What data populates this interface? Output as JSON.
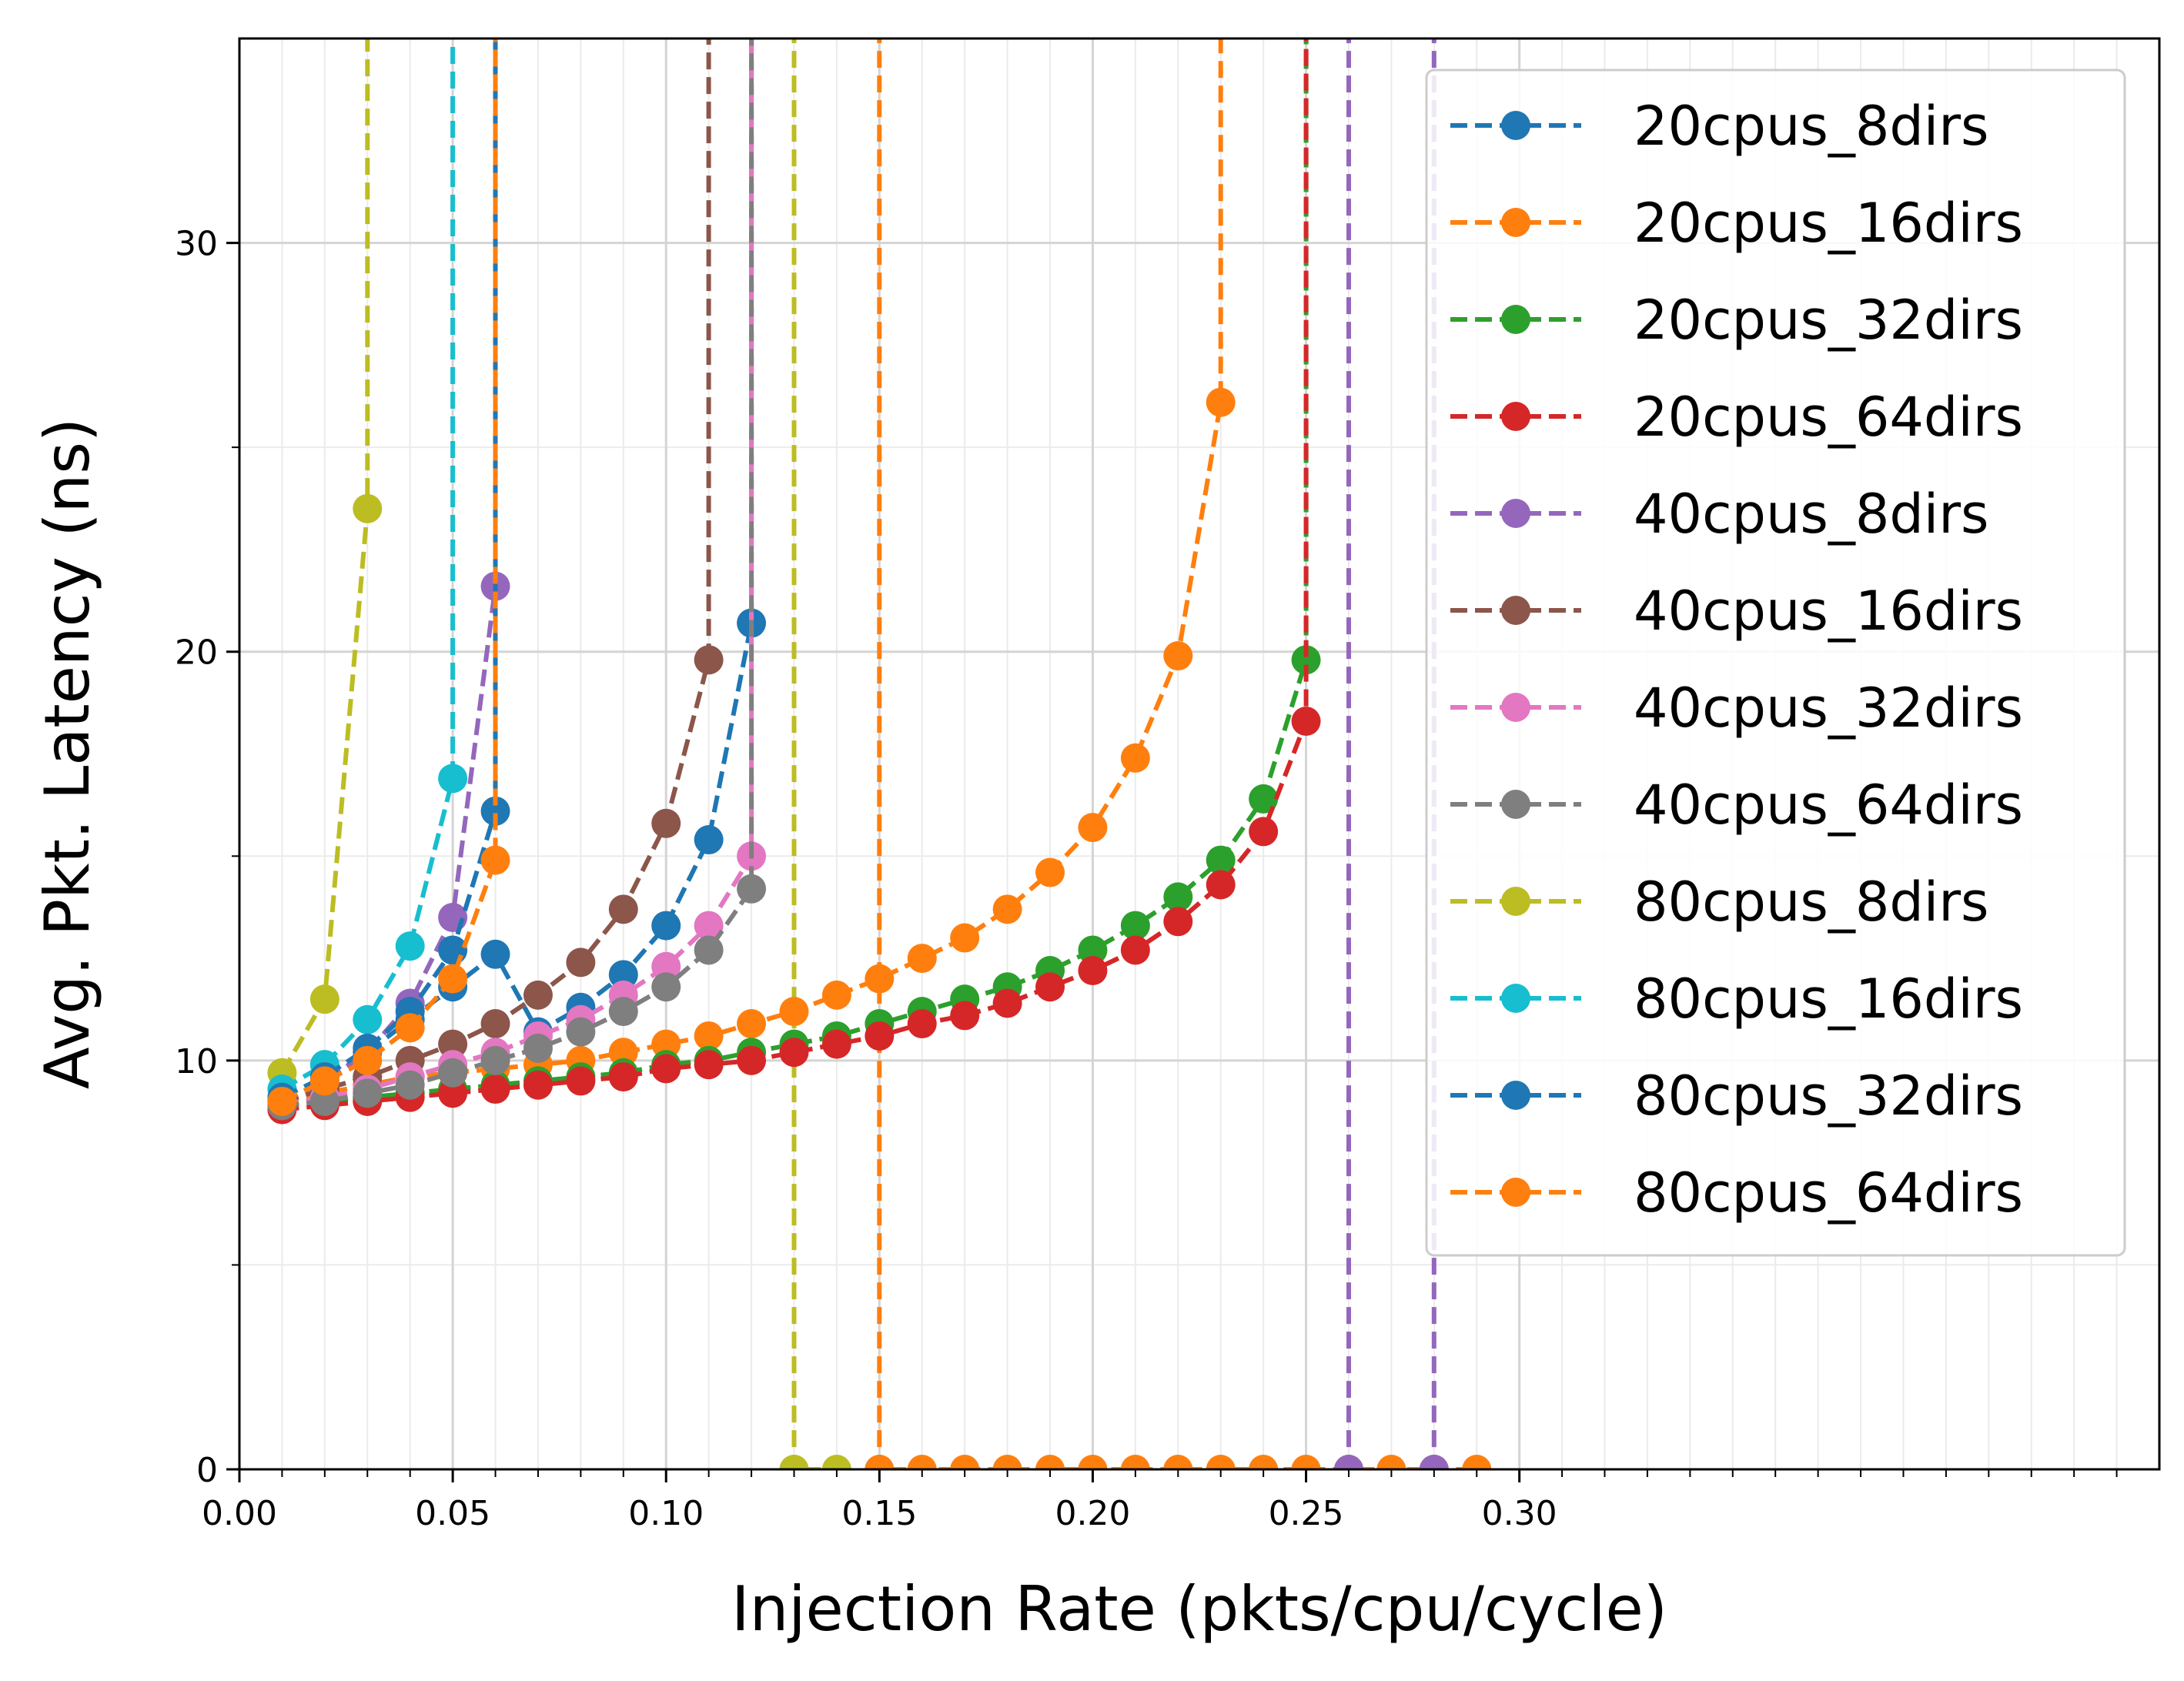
{
  "chart_data": {
    "type": "line",
    "xlabel": "Injection Rate  (pkts/cpu/cycle)",
    "ylabel": "Avg. Pkt. Latency (ns)",
    "xlim": [
      0.0,
      0.45
    ],
    "ylim": [
      0,
      35
    ],
    "x_ticks": [
      0.0,
      0.05,
      0.1,
      0.15,
      0.2,
      0.25,
      0.3
    ],
    "x_tick_labels": [
      "0.00",
      "0.05",
      "0.10",
      "0.15",
      "0.20",
      "0.25",
      "0.30"
    ],
    "y_ticks": [
      0,
      10,
      20,
      30
    ],
    "y_tick_labels": [
      "0",
      "10",
      "20",
      "30"
    ],
    "x_minor_step": 0.01,
    "y_minor_step": 5,
    "grid": true,
    "legend_position": "top-right",
    "line_style": "dashed",
    "marker": "circle",
    "series": [
      {
        "name": "20cpus_8dirs",
        "color": "#1f77b4",
        "x": [
          0.01,
          0.02,
          0.03,
          0.04,
          0.05,
          0.06,
          0.07,
          0.08,
          0.09,
          0.1,
          0.11,
          0.12,
          0.12
        ],
        "y": [
          9.0,
          9.5,
          10.2,
          11.0,
          11.8,
          12.6,
          10.7,
          11.3,
          12.1,
          13.3,
          15.4,
          20.7,
          60
        ]
      },
      {
        "name": "20cpus_16dirs",
        "color": "#ff7f0e",
        "x": [
          0.01,
          0.02,
          0.03,
          0.04,
          0.05,
          0.06,
          0.07,
          0.08,
          0.09,
          0.1,
          0.11,
          0.12,
          0.13,
          0.14,
          0.15,
          0.16,
          0.17,
          0.18,
          0.19,
          0.2,
          0.21,
          0.22,
          0.23,
          0.23
        ],
        "y": [
          9.0,
          9.2,
          9.4,
          9.6,
          9.7,
          9.8,
          9.9,
          10.0,
          10.2,
          10.4,
          10.6,
          10.9,
          11.2,
          11.6,
          12.0,
          12.5,
          13.0,
          13.7,
          14.6,
          15.7,
          17.4,
          19.9,
          26.1,
          60
        ]
      },
      {
        "name": "20cpus_32dirs",
        "color": "#2ca02c",
        "x": [
          0.01,
          0.02,
          0.03,
          0.04,
          0.05,
          0.06,
          0.07,
          0.08,
          0.09,
          0.1,
          0.11,
          0.12,
          0.13,
          0.14,
          0.15,
          0.16,
          0.17,
          0.18,
          0.19,
          0.2,
          0.21,
          0.22,
          0.23,
          0.24,
          0.25,
          0.25
        ],
        "y": [
          8.9,
          9.0,
          9.1,
          9.2,
          9.3,
          9.4,
          9.5,
          9.6,
          9.7,
          9.9,
          10.0,
          10.2,
          10.4,
          10.6,
          10.9,
          11.2,
          11.5,
          11.8,
          12.2,
          12.7,
          13.3,
          14.0,
          14.9,
          16.4,
          19.8,
          60
        ]
      },
      {
        "name": "20cpus_64dirs",
        "color": "#d62728",
        "x": [
          0.01,
          0.02,
          0.03,
          0.04,
          0.05,
          0.06,
          0.07,
          0.08,
          0.09,
          0.1,
          0.11,
          0.12,
          0.13,
          0.14,
          0.15,
          0.16,
          0.17,
          0.18,
          0.19,
          0.2,
          0.21,
          0.22,
          0.23,
          0.24,
          0.25,
          0.25
        ],
        "y": [
          8.8,
          8.9,
          9.0,
          9.1,
          9.2,
          9.3,
          9.4,
          9.5,
          9.6,
          9.8,
          9.9,
          10.0,
          10.2,
          10.4,
          10.6,
          10.9,
          11.1,
          11.4,
          11.8,
          12.2,
          12.7,
          13.4,
          14.3,
          15.6,
          18.3,
          60
        ]
      },
      {
        "name": "40cpus_8dirs",
        "color": "#9467bd",
        "x": [
          0.01,
          0.02,
          0.03,
          0.04,
          0.05,
          0.06,
          0.06
        ],
        "y": [
          9.0,
          9.5,
          10.2,
          11.4,
          13.5,
          21.6,
          60
        ]
      },
      {
        "name": "40cpus_16dirs",
        "color": "#8c564b",
        "x": [
          0.01,
          0.02,
          0.03,
          0.04,
          0.05,
          0.06,
          0.07,
          0.08,
          0.09,
          0.1,
          0.11,
          0.11
        ],
        "y": [
          9.0,
          9.3,
          9.6,
          10.0,
          10.4,
          10.9,
          11.6,
          12.4,
          13.7,
          15.8,
          19.8,
          60
        ]
      },
      {
        "name": "40cpus_32dirs",
        "color": "#e377c2",
        "x": [
          0.01,
          0.02,
          0.03,
          0.04,
          0.05,
          0.06,
          0.07,
          0.08,
          0.09,
          0.1,
          0.11,
          0.12,
          0.12
        ],
        "y": [
          8.9,
          9.1,
          9.3,
          9.6,
          9.9,
          10.2,
          10.6,
          11.0,
          11.6,
          12.3,
          13.3,
          15.0,
          60
        ]
      },
      {
        "name": "40cpus_64dirs",
        "color": "#7f7f7f",
        "x": [
          0.01,
          0.02,
          0.03,
          0.04,
          0.05,
          0.06,
          0.07,
          0.08,
          0.09,
          0.1,
          0.11,
          0.12,
          0.12
        ],
        "y": [
          8.9,
          9.0,
          9.2,
          9.4,
          9.7,
          10.0,
          10.3,
          10.7,
          11.2,
          11.8,
          12.7,
          14.2,
          60
        ]
      },
      {
        "name": "80cpus_8dirs",
        "color": "#bcbd22",
        "x": [
          0.01,
          0.02,
          0.03,
          0.03
        ],
        "y": [
          9.7,
          11.5,
          23.5,
          60
        ]
      },
      {
        "name": "80cpus_16dirs",
        "color": "#17becf",
        "x": [
          0.01,
          0.02,
          0.03,
          0.04,
          0.05,
          0.05
        ],
        "y": [
          9.3,
          9.9,
          11.0,
          12.8,
          16.9,
          60
        ]
      },
      {
        "name": "80cpus_32dirs",
        "color": "#1f77b4",
        "x": [
          0.01,
          0.02,
          0.03,
          0.04,
          0.05,
          0.06,
          0.06
        ],
        "y": [
          9.1,
          9.6,
          10.3,
          11.2,
          12.7,
          16.1,
          60
        ]
      },
      {
        "name": "80cpus_64dirs",
        "color": "#ff7f0e",
        "x": [
          0.01,
          0.02,
          0.03,
          0.04,
          0.05,
          0.06,
          0.06
        ],
        "y": [
          9.0,
          9.5,
          10.0,
          10.8,
          12.0,
          14.9,
          60
        ]
      }
    ],
    "extra_series": [
      {
        "name": "80cpus_8dirs",
        "color": "#bcbd22",
        "x": [
          0.13,
          0.13,
          0.14
        ],
        "y": [
          60,
          0,
          0
        ]
      },
      {
        "name": "20cpus_16dirs",
        "color": "#ff7f0e",
        "x": [
          0.15,
          0.15,
          0.16,
          0.17,
          0.18,
          0.19,
          0.2,
          0.21,
          0.22,
          0.23,
          0.24,
          0.25,
          0.26,
          0.27,
          0.28,
          0.29
        ],
        "y": [
          60,
          0,
          0,
          0,
          0,
          0,
          0,
          0,
          0,
          0,
          0,
          0,
          0,
          0,
          0,
          0
        ]
      },
      {
        "name": "40cpus_8dirs",
        "color": "#9467bd",
        "x": [
          0.26,
          0.26
        ],
        "y": [
          60,
          0
        ]
      },
      {
        "name": "40cpus_8dirs",
        "color": "#9467bd",
        "x": [
          0.28,
          0.28
        ],
        "y": [
          60,
          0
        ]
      }
    ]
  }
}
